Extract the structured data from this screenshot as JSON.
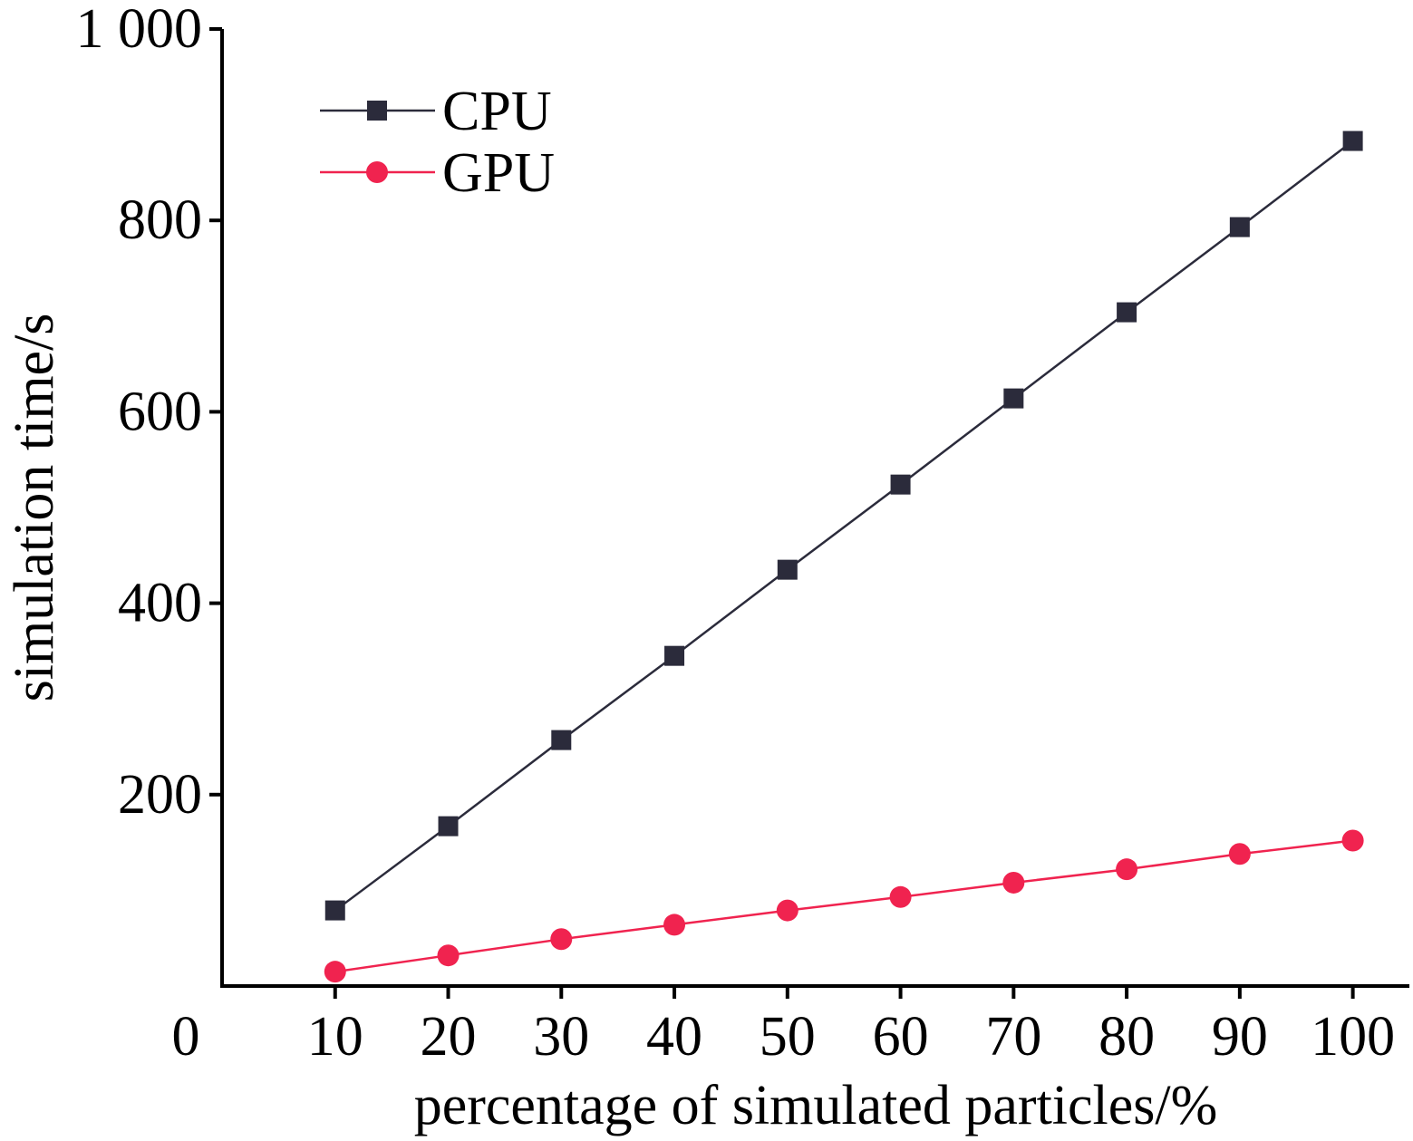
{
  "chart_data": {
    "type": "line",
    "title": "",
    "xlabel": "percentage of simulated particles/%",
    "ylabel": "simulation time/s",
    "x": [
      10,
      20,
      30,
      40,
      50,
      60,
      70,
      80,
      90,
      100
    ],
    "xlim": [
      0,
      105
    ],
    "ylim": [
      0,
      1000
    ],
    "x_ticks": [
      {
        "value": 0,
        "label": "0"
      },
      {
        "value": 10,
        "label": "10"
      },
      {
        "value": 20,
        "label": "20"
      },
      {
        "value": 30,
        "label": "30"
      },
      {
        "value": 40,
        "label": "40"
      },
      {
        "value": 50,
        "label": "50"
      },
      {
        "value": 60,
        "label": "60"
      },
      {
        "value": 70,
        "label": "70"
      },
      {
        "value": 80,
        "label": "80"
      },
      {
        "value": 90,
        "label": "90"
      },
      {
        "value": 100,
        "label": "100"
      }
    ],
    "y_ticks": [
      {
        "value": 200,
        "label": "200"
      },
      {
        "value": 400,
        "label": "400"
      },
      {
        "value": 600,
        "label": "600"
      },
      {
        "value": 800,
        "label": "800"
      },
      {
        "value": 1000,
        "label": "1 000"
      }
    ],
    "grid": false,
    "legend_position": "top-left",
    "series": [
      {
        "name": "CPU",
        "color": "#2b2b3b",
        "marker": "square",
        "values": [
          79,
          167,
          257,
          345,
          435,
          524,
          614,
          704,
          793,
          883
        ]
      },
      {
        "name": "GPU",
        "color": "#f0234f",
        "marker": "circle",
        "values": [
          15,
          32,
          49,
          64,
          79,
          93,
          108,
          122,
          138,
          152
        ]
      }
    ]
  }
}
